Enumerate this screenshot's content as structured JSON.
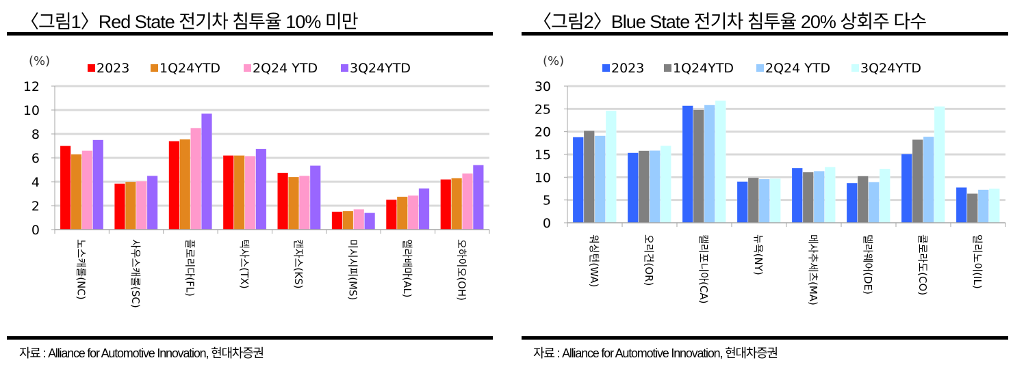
{
  "chart_data": [
    {
      "type": "bar",
      "title": "〈그림1〉Red State 전기차 침투율 10% 미만",
      "unit_label": "(%)",
      "xlabel": "",
      "ylabel": "(%)",
      "ylim": [
        0,
        12
      ],
      "yticks": [
        "0",
        "2",
        "4",
        "6",
        "8",
        "10",
        "12"
      ],
      "grid": true,
      "legend_position": "top",
      "categories": [
        "노스캐롤(NC)",
        "사우스캐롤(SC)",
        "플로리다(FL)",
        "텍사스(TX)",
        "캔자스(KS)",
        "미시시피(MS)",
        "앨라배마(AL)",
        "오하이오(OH)"
      ],
      "series": [
        {
          "name": "2023",
          "color": "#ff0000",
          "values": [
            7.0,
            3.85,
            7.4,
            6.2,
            4.75,
            1.5,
            2.5,
            4.2
          ]
        },
        {
          "name": "1Q24YTD",
          "color": "#e3861e",
          "values": [
            6.3,
            4.0,
            7.55,
            6.2,
            4.4,
            1.55,
            2.75,
            4.3
          ]
        },
        {
          "name": "2Q24 YTD",
          "color": "#ff99cc",
          "values": [
            6.6,
            4.05,
            8.5,
            6.15,
            4.5,
            1.7,
            2.85,
            4.7
          ]
        },
        {
          "name": "3Q24YTD",
          "color": "#9966ff",
          "values": [
            7.5,
            4.5,
            9.7,
            6.75,
            5.35,
            1.4,
            3.45,
            5.4
          ]
        }
      ],
      "source": "자료 : Alliance for Automotive Innovation, 현대차증권"
    },
    {
      "type": "bar",
      "title": "〈그림2〉Blue State 전기차 침투율 20% 상회주 다수",
      "unit_label": "(%)",
      "xlabel": "",
      "ylabel": "(%)",
      "ylim": [
        0,
        30
      ],
      "yticks": [
        "0",
        "5",
        "10",
        "15",
        "20",
        "25",
        "30"
      ],
      "grid": true,
      "legend_position": "top",
      "categories": [
        "워싱턴(WA)",
        "오리건(OR)",
        "캘리포니아(CA)",
        "뉴욕(NY)",
        "메사추세츠(MA)",
        "델라웨어(DE)",
        "콜로라도(CO)",
        "일리노이(IL)"
      ],
      "series": [
        {
          "name": "2023",
          "color": "#3366ff",
          "values": [
            18.8,
            15.35,
            25.7,
            9.05,
            12.0,
            8.7,
            15.1,
            7.75
          ]
        },
        {
          "name": "1Q24YTD",
          "color": "#808080",
          "values": [
            20.2,
            15.8,
            24.8,
            9.9,
            11.1,
            10.25,
            18.25,
            6.4
          ]
        },
        {
          "name": "2Q24 YTD",
          "color": "#99ccff",
          "values": [
            19.1,
            15.85,
            25.85,
            9.6,
            11.35,
            8.95,
            18.9,
            7.25
          ]
        },
        {
          "name": "3Q24YTD",
          "color": "#ccffff",
          "values": [
            24.6,
            16.9,
            26.8,
            9.7,
            12.25,
            11.85,
            25.55,
            7.5
          ]
        }
      ],
      "source": "자료 : Alliance for Automotive Innovation, 현대차증권"
    }
  ]
}
